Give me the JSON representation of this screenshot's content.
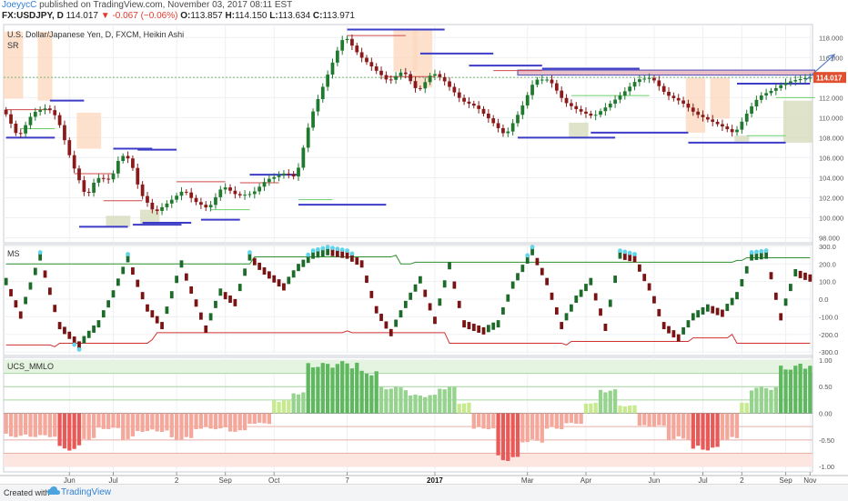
{
  "header": {
    "author": "JoeyycC",
    "published": "published on TradingView.com, November 03, 2017 08:11 EST",
    "symbol": "FX:USDJPY, D",
    "last": "114.017",
    "change": "▼ -0.067 (−0.06%)",
    "open_label": "O:",
    "open": "113.857",
    "high_label": "H:",
    "high": "114.150",
    "low_label": "L:",
    "low": "113.634",
    "close_label": "C:",
    "close": "113.971"
  },
  "panes": {
    "price_title": "U.S. Dollar/Japanese Yen, D, FXCM, Heikin Ashi",
    "sr_label": "SR",
    "ms_label": "MS",
    "mmlo_label": "UCS_MMLO"
  },
  "footer": {
    "created_with": "Created with",
    "brand": "TradingView"
  },
  "colors": {
    "bull": "#1f7a2e",
    "bear": "#8b1a1a",
    "support": "#3c3cc8",
    "resistance": "#d04848",
    "fib_green": "#6ad06a",
    "ms_upper": "#2f8f2f",
    "ms_lower": "#d03030",
    "mmlo_pos": "#6cc46c",
    "mmlo_neg": "#f28c82",
    "trend_arrow": "#5b7fc8",
    "price_marker": "#e05030"
  },
  "chart_data": [
    {
      "type": "candlestick",
      "title": "U.S. Dollar/Japanese Yen, D, FXCM, Heikin Ashi",
      "x_ticks": [
        "Jun",
        "Jul",
        "2",
        "Sep",
        "Oct",
        "7",
        "2017",
        "Mar",
        "Apr",
        "Jun",
        "Jul",
        "2",
        "Sep",
        "Nov"
      ],
      "y_ticks": [
        "118.000",
        "116.000",
        "114.000",
        "112.000",
        "110.000",
        "108.000",
        "106.000",
        "104.000",
        "102.000",
        "100.000",
        "98.000"
      ],
      "ylim": [
        97.5,
        119.3
      ],
      "last_price_label": "114.017",
      "price_path": [
        [
          0,
          110.8
        ],
        [
          3,
          108.0
        ],
        [
          6,
          110.5
        ],
        [
          9,
          111.0
        ],
        [
          11,
          110.0
        ],
        [
          14,
          105.5
        ],
        [
          17,
          102.0
        ],
        [
          19,
          104.0
        ],
        [
          22,
          103.8
        ],
        [
          24,
          106.3
        ],
        [
          26,
          105.8
        ],
        [
          28,
          102.5
        ],
        [
          31,
          100.5
        ],
        [
          34,
          101.6
        ],
        [
          37,
          102.8
        ],
        [
          39,
          101.7
        ],
        [
          42,
          100.9
        ],
        [
          45,
          103.2
        ],
        [
          48,
          102.2
        ],
        [
          51,
          102.4
        ],
        [
          54,
          103.8
        ],
        [
          58,
          104.5
        ],
        [
          60,
          104.0
        ],
        [
          63,
          110.0
        ],
        [
          66,
          113.7
        ],
        [
          69,
          117.3
        ],
        [
          70,
          118.2
        ],
        [
          73,
          116.2
        ],
        [
          76,
          114.9
        ],
        [
          79,
          113.6
        ],
        [
          82,
          114.7
        ],
        [
          85,
          112.6
        ],
        [
          88,
          114.5
        ],
        [
          90,
          113.9
        ],
        [
          94,
          111.7
        ],
        [
          97,
          111.1
        ],
        [
          100,
          109.7
        ],
        [
          103,
          108.2
        ],
        [
          106,
          110.7
        ],
        [
          109,
          113.8
        ],
        [
          112,
          113.8
        ],
        [
          115,
          111.6
        ],
        [
          118,
          110.7
        ],
        [
          121,
          110.1
        ],
        [
          124,
          111.2
        ],
        [
          127,
          112.4
        ],
        [
          130,
          113.8
        ],
        [
          133,
          114.0
        ],
        [
          136,
          112.3
        ],
        [
          139,
          111.6
        ],
        [
          142,
          110.4
        ],
        [
          145,
          109.7
        ],
        [
          148,
          109.0
        ],
        [
          150,
          108.4
        ],
        [
          153,
          110.8
        ],
        [
          155,
          112.1
        ],
        [
          158,
          112.8
        ],
        [
          160,
          113.4
        ],
        [
          162,
          113.7
        ],
        [
          165,
          114.0
        ]
      ],
      "support_lines": [
        [
          0,
          10,
          108.0
        ],
        [
          9,
          16,
          111.7
        ],
        [
          15,
          25,
          99.1
        ],
        [
          22,
          30,
          106.9
        ],
        [
          26,
          36,
          99.3
        ],
        [
          27,
          35,
          106.8
        ],
        [
          28,
          38,
          99.5
        ],
        [
          40,
          48,
          99.8
        ],
        [
          50,
          60,
          104.3
        ],
        [
          60,
          78,
          101.3
        ],
        [
          70,
          90,
          118.8
        ],
        [
          85,
          100,
          116.4
        ],
        [
          95,
          110,
          115.2
        ],
        [
          105,
          125,
          108.0
        ],
        [
          110,
          130,
          114.9
        ],
        [
          120,
          140,
          108.5
        ],
        [
          140,
          160,
          107.5
        ],
        [
          150,
          165,
          113.4
        ]
      ],
      "resistance_lines": [
        [
          0,
          9,
          110.8
        ],
        [
          14,
          22,
          104.4
        ],
        [
          20,
          28,
          101.7
        ],
        [
          35,
          45,
          103.6
        ],
        [
          48,
          56,
          103.5
        ],
        [
          70,
          82,
          118.2
        ],
        [
          78,
          88,
          114.1
        ],
        [
          100,
          110,
          114.7
        ]
      ],
      "sr_zone": [
        105,
        166,
        114.25,
        114.75
      ],
      "vertical_zones": [
        [
          0,
          3,
          111.9,
          118.6,
          "#fdd9c0"
        ],
        [
          7,
          9,
          111.7,
          118.6,
          "#fdd9c0"
        ],
        [
          15,
          19,
          106.9,
          110.5,
          "#fdd9c0"
        ],
        [
          21,
          25,
          99.1,
          100.2,
          "#d6dcbc"
        ],
        [
          28,
          31,
          99.3,
          100.8,
          "#d6dcbc"
        ],
        [
          80,
          84,
          114.6,
          118.8,
          "#fdd9c0"
        ],
        [
          84,
          87,
          113.0,
          118.8,
          "#fdd9c0"
        ],
        [
          116,
          119,
          108.0,
          109.5,
          "#d6dcbc"
        ],
        [
          140,
          143,
          108.5,
          114.0,
          "#fdd9c0"
        ],
        [
          145,
          148,
          109.9,
          114.0,
          "#fdd9c0"
        ],
        [
          150,
          152,
          107.6,
          108.2,
          "#d6dcbc"
        ],
        [
          160,
          165,
          107.5,
          111.7,
          "#d6dcbc"
        ]
      ],
      "trend_arrow": [
        [
          164,
          113.7
        ],
        [
          170,
          116.3
        ]
      ]
    },
    {
      "type": "line",
      "title": "MS",
      "y_ticks": [
        "300.0",
        "200.0",
        "100.0",
        "0.0",
        "-100.0",
        "-200.0",
        "-300.0"
      ],
      "ylim": [
        -320,
        310
      ],
      "oscillator_anchors": [
        [
          0,
          100
        ],
        [
          3,
          -90
        ],
        [
          7,
          240
        ],
        [
          11,
          -150
        ],
        [
          15,
          -260
        ],
        [
          19,
          -140
        ],
        [
          22,
          30
        ],
        [
          25,
          230
        ],
        [
          29,
          -50
        ],
        [
          32,
          -150
        ],
        [
          36,
          200
        ],
        [
          41,
          -170
        ],
        [
          44,
          40
        ],
        [
          47,
          -20
        ],
        [
          50,
          240
        ],
        [
          53,
          160
        ],
        [
          57,
          70
        ],
        [
          60,
          180
        ],
        [
          63,
          250
        ],
        [
          66,
          270
        ],
        [
          70,
          250
        ],
        [
          73,
          200
        ],
        [
          76,
          -60
        ],
        [
          79,
          -190
        ],
        [
          82,
          -30
        ],
        [
          85,
          110
        ],
        [
          88,
          -120
        ],
        [
          91,
          190
        ],
        [
          94,
          -140
        ],
        [
          98,
          -180
        ],
        [
          101,
          -140
        ],
        [
          104,
          80
        ],
        [
          108,
          270
        ],
        [
          111,
          100
        ],
        [
          114,
          -150
        ],
        [
          117,
          0
        ],
        [
          120,
          100
        ],
        [
          123,
          -160
        ],
        [
          126,
          250
        ],
        [
          129,
          230
        ],
        [
          132,
          70
        ],
        [
          135,
          -150
        ],
        [
          138,
          -220
        ],
        [
          141,
          -100
        ],
        [
          144,
          -50
        ],
        [
          147,
          -80
        ],
        [
          150,
          20
        ],
        [
          153,
          240
        ],
        [
          156,
          250
        ],
        [
          159,
          -100
        ],
        [
          162,
          150
        ],
        [
          165,
          120
        ]
      ],
      "upper_band": [
        [
          0,
          200
        ],
        [
          50,
          200
        ],
        [
          51,
          240
        ],
        [
          80,
          250
        ],
        [
          81,
          200
        ],
        [
          84,
          210
        ],
        [
          150,
          220
        ],
        [
          152,
          235
        ],
        [
          166,
          235
        ]
      ],
      "lower_band": [
        [
          0,
          -260
        ],
        [
          10,
          -270
        ],
        [
          11,
          -250
        ],
        [
          30,
          -230
        ],
        [
          31,
          -190
        ],
        [
          70,
          -180
        ],
        [
          71,
          -190
        ],
        [
          90,
          -190
        ],
        [
          91,
          -250
        ],
        [
          115,
          -260
        ],
        [
          116,
          -240
        ],
        [
          140,
          -240
        ],
        [
          141,
          -220
        ],
        [
          149,
          -200
        ],
        [
          150,
          -250
        ],
        [
          166,
          -250
        ]
      ]
    },
    {
      "type": "bar",
      "title": "UCS_MMLO",
      "y_ticks": [
        "1.00",
        "0.50",
        "0.00",
        "-0.50",
        "-1.00"
      ],
      "ylim": [
        -1.1,
        1.05
      ],
      "guide_levels": [
        0.75,
        0.5,
        0.25,
        -0.25,
        -0.5,
        -0.75
      ],
      "bar_segments": [
        [
          0,
          10,
          -0.45
        ],
        [
          11,
          15,
          -0.7
        ],
        [
          16,
          18,
          -0.5
        ],
        [
          19,
          23,
          -0.3
        ],
        [
          24,
          26,
          -0.5
        ],
        [
          27,
          33,
          -0.35
        ],
        [
          34,
          38,
          -0.5
        ],
        [
          39,
          45,
          -0.3
        ],
        [
          46,
          49,
          -0.35
        ],
        [
          50,
          54,
          -0.2
        ],
        [
          55,
          58,
          0.25
        ],
        [
          59,
          61,
          0.4
        ],
        [
          62,
          66,
          0.95
        ],
        [
          67,
          72,
          0.98
        ],
        [
          73,
          76,
          0.8
        ],
        [
          77,
          82,
          0.5
        ],
        [
          83,
          88,
          0.35
        ],
        [
          89,
          92,
          0.5
        ],
        [
          93,
          95,
          0.2
        ],
        [
          96,
          100,
          -0.3
        ],
        [
          101,
          105,
          -0.9
        ],
        [
          106,
          110,
          -0.55
        ],
        [
          111,
          114,
          -0.3
        ],
        [
          115,
          118,
          -0.2
        ],
        [
          119,
          121,
          0.2
        ],
        [
          122,
          125,
          0.45
        ],
        [
          126,
          129,
          0.15
        ],
        [
          130,
          135,
          -0.25
        ],
        [
          136,
          140,
          -0.5
        ],
        [
          141,
          146,
          -0.7
        ],
        [
          147,
          150,
          -0.5
        ],
        [
          151,
          152,
          0.2
        ],
        [
          153,
          158,
          0.5
        ],
        [
          159,
          162,
          0.9
        ],
        [
          163,
          166,
          0.95
        ]
      ]
    }
  ]
}
